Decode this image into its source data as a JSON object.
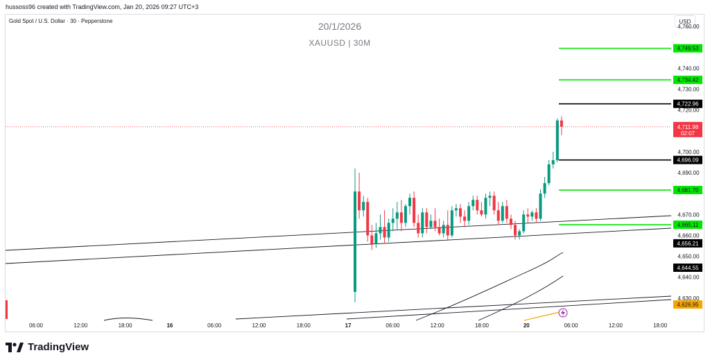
{
  "header": {
    "note": "hussoss96 created with TradingView.com, Jan 20, 2026 09:27 UTC+3"
  },
  "symbol_line": "Gold Spot / U.S. Dollar · 30 · Pepperstone",
  "currency": "USD",
  "brand": {
    "name": "TradingView",
    "icon": "tradingview-logo-icon"
  },
  "colors": {
    "bull": "#089981",
    "bear": "#f23645",
    "green_level": "#00e600",
    "black_level": "#000000",
    "orange": "#f7a600"
  },
  "chart_data": {
    "type": "candlestick",
    "title": "20/1/2026",
    "subtitle": "XAUUSD | 30M",
    "ylim": [
      4620,
      4766
    ],
    "y_ticks": [
      4630,
      4640,
      4650,
      4660,
      4670,
      4690,
      4700,
      4720,
      4730,
      4740,
      4760
    ],
    "y_tick_labels": [
      "4,630.00",
      "4,640.00",
      "4,650.00",
      "4,660.00",
      "4,670.00",
      "4,690.00",
      "4,700.00",
      "4,720.00",
      "4,730.00",
      "4,740.00",
      "4,760.00"
    ],
    "x_ticks": [
      "06:00",
      "12:00",
      "18:00",
      "16",
      "06:00",
      "12:00",
      "18:00",
      "17",
      "06:00",
      "12:00",
      "18:00",
      "20",
      "06:00",
      "12:00",
      "18:00"
    ],
    "x_tick_bold": [
      false,
      false,
      false,
      true,
      false,
      false,
      false,
      true,
      false,
      false,
      false,
      true,
      false,
      false,
      false
    ],
    "candles": [
      {
        "o": 4633,
        "h": 4692,
        "c": 4681,
        "l": 4628
      },
      {
        "o": 4681,
        "h": 4690,
        "c": 4672,
        "l": 4668
      },
      {
        "o": 4672,
        "h": 4679,
        "c": 4676,
        "l": 4669
      },
      {
        "o": 4676,
        "h": 4678,
        "c": 4660,
        "l": 4657
      },
      {
        "o": 4660,
        "h": 4665,
        "c": 4656,
        "l": 4653
      },
      {
        "o": 4656,
        "h": 4666,
        "c": 4661,
        "l": 4654
      },
      {
        "o": 4661,
        "h": 4670,
        "c": 4664,
        "l": 4658
      },
      {
        "o": 4664,
        "h": 4672,
        "c": 4659,
        "l": 4656
      },
      {
        "o": 4659,
        "h": 4668,
        "c": 4666,
        "l": 4657
      },
      {
        "o": 4666,
        "h": 4673,
        "c": 4668,
        "l": 4662
      },
      {
        "o": 4668,
        "h": 4676,
        "c": 4671,
        "l": 4663
      },
      {
        "o": 4671,
        "h": 4677,
        "c": 4666,
        "l": 4662
      },
      {
        "o": 4666,
        "h": 4675,
        "c": 4674,
        "l": 4664
      },
      {
        "o": 4674,
        "h": 4680,
        "c": 4678,
        "l": 4670
      },
      {
        "o": 4678,
        "h": 4681,
        "c": 4666,
        "l": 4664
      },
      {
        "o": 4666,
        "h": 4670,
        "c": 4661,
        "l": 4659
      },
      {
        "o": 4661,
        "h": 4673,
        "c": 4671,
        "l": 4659
      },
      {
        "o": 4671,
        "h": 4673,
        "c": 4664,
        "l": 4661
      },
      {
        "o": 4664,
        "h": 4670,
        "c": 4667,
        "l": 4663
      },
      {
        "o": 4667,
        "h": 4673,
        "c": 4664,
        "l": 4662
      },
      {
        "o": 4664,
        "h": 4668,
        "c": 4661,
        "l": 4660
      },
      {
        "o": 4661,
        "h": 4667,
        "c": 4665,
        "l": 4659
      },
      {
        "o": 4665,
        "h": 4672,
        "c": 4660,
        "l": 4658
      },
      {
        "o": 4660,
        "h": 4674,
        "c": 4672,
        "l": 4659
      },
      {
        "o": 4672,
        "h": 4675,
        "c": 4673,
        "l": 4669
      },
      {
        "o": 4673,
        "h": 4675,
        "c": 4669,
        "l": 4666
      },
      {
        "o": 4669,
        "h": 4672,
        "c": 4667,
        "l": 4664
      },
      {
        "o": 4667,
        "h": 4676,
        "c": 4674,
        "l": 4665
      },
      {
        "o": 4674,
        "h": 4679,
        "c": 4677,
        "l": 4672
      },
      {
        "o": 4677,
        "h": 4679,
        "c": 4672,
        "l": 4670
      },
      {
        "o": 4672,
        "h": 4676,
        "c": 4670,
        "l": 4669
      },
      {
        "o": 4670,
        "h": 4680,
        "c": 4678,
        "l": 4668
      },
      {
        "o": 4678,
        "h": 4681,
        "c": 4679,
        "l": 4674
      },
      {
        "o": 4679,
        "h": 4681,
        "c": 4672,
        "l": 4670
      },
      {
        "o": 4672,
        "h": 4676,
        "c": 4667,
        "l": 4665
      },
      {
        "o": 4667,
        "h": 4676,
        "c": 4674,
        "l": 4666
      },
      {
        "o": 4674,
        "h": 4677,
        "c": 4668,
        "l": 4666
      },
      {
        "o": 4668,
        "h": 4670,
        "c": 4665,
        "l": 4663
      },
      {
        "o": 4665,
        "h": 4667,
        "c": 4660,
        "l": 4658
      },
      {
        "o": 4660,
        "h": 4663,
        "c": 4662,
        "l": 4658
      },
      {
        "o": 4662,
        "h": 4672,
        "c": 4670,
        "l": 4661
      },
      {
        "o": 4670,
        "h": 4673,
        "c": 4669,
        "l": 4666
      },
      {
        "o": 4669,
        "h": 4672,
        "c": 4671,
        "l": 4667
      },
      {
        "o": 4671,
        "h": 4673,
        "c": 4668,
        "l": 4666
      },
      {
        "o": 4668,
        "h": 4682,
        "c": 4680,
        "l": 4667
      },
      {
        "o": 4680,
        "h": 4688,
        "c": 4685,
        "l": 4678
      },
      {
        "o": 4685,
        "h": 4696,
        "c": 4694,
        "l": 4684
      },
      {
        "o": 4694,
        "h": 4700,
        "c": 4696,
        "l": 4692
      },
      {
        "o": 4696,
        "h": 4716,
        "c": 4715,
        "l": 4695
      },
      {
        "o": 4715,
        "h": 4717,
        "c": 4712,
        "l": 4708
      }
    ],
    "hlines": [
      {
        "value": 4749.53,
        "color": "#00e600",
        "label": "4,749.53"
      },
      {
        "value": 4734.42,
        "color": "#00e600",
        "label": "4,734.42"
      },
      {
        "value": 4722.96,
        "color": "#000000",
        "label": "4,722.96"
      },
      {
        "value": 4696.09,
        "color": "#000000",
        "label": "4,696.09"
      },
      {
        "value": 4681.7,
        "color": "#00e600",
        "label": "4,681.70"
      },
      {
        "value": 4665.11,
        "color": "#00e600",
        "label": "4,665.11"
      }
    ],
    "price_tags": [
      {
        "value": 4656.21,
        "label": "4,656.21",
        "bg": "#000000",
        "fg": "#ffffff"
      },
      {
        "value": 4644.55,
        "label": "4,644.55",
        "bg": "#000000",
        "fg": "#ffffff"
      },
      {
        "value": 4626.95,
        "label": "4,626.95",
        "bg": "#f7a600",
        "fg": "#131722"
      }
    ],
    "current_price": {
      "value": 4711.98,
      "label": "4,711.98",
      "countdown": "02:07",
      "color": "#f23645"
    }
  }
}
